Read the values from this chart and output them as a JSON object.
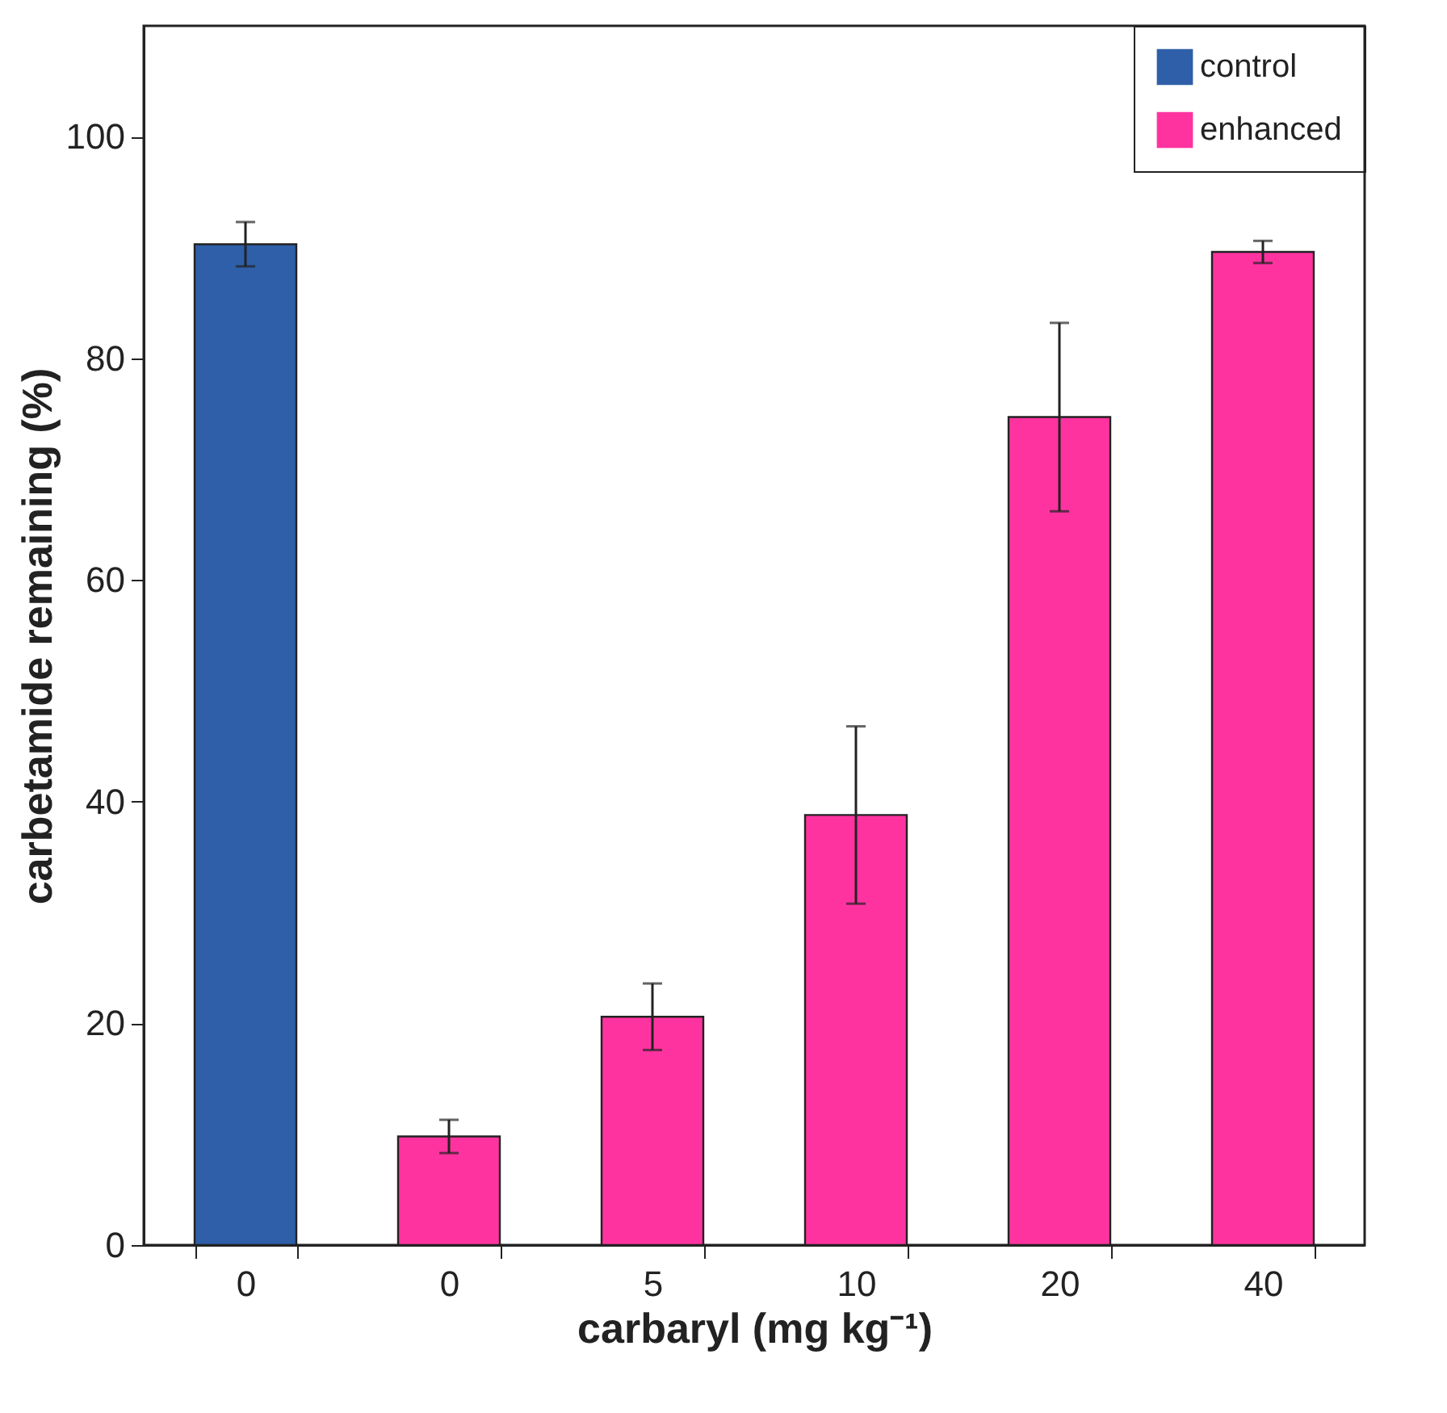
{
  "chart_data": {
    "type": "bar",
    "xlabel": "carbaryl (mg kg⁻¹)",
    "ylabel": "carbetamide remaining (%)",
    "categories": [
      "0",
      "0",
      "5",
      "10",
      "20",
      "40"
    ],
    "series": [
      {
        "name": "control",
        "color": "#2e5fa8",
        "values": [
          90.3,
          null,
          null,
          null,
          null,
          null
        ],
        "errors": [
          2,
          null,
          null,
          null,
          null,
          null
        ]
      },
      {
        "name": "enhanced",
        "color": "#ff33a0",
        "values": [
          null,
          9.8,
          20.6,
          38.8,
          74.7,
          89.6
        ],
        "errors": [
          null,
          1.5,
          3,
          8,
          8.5,
          1
        ]
      }
    ],
    "ylim": [
      0,
      110
    ],
    "yticks": [
      0,
      20,
      40,
      60,
      80,
      100
    ],
    "grid": false,
    "legend": "top right"
  }
}
